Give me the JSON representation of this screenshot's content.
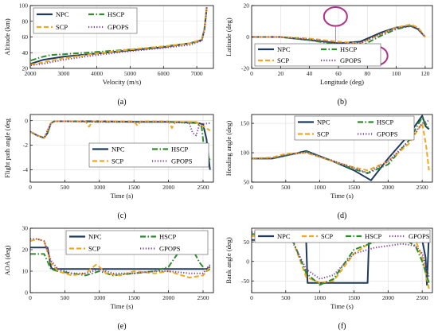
{
  "chart_data": [
    {
      "type": "line",
      "caption": "(a)",
      "xlabel": "Velocity (m/s)",
      "ylabel": "Altitude (km)",
      "xlim": [
        2000,
        7500
      ],
      "ylim": [
        20,
        100
      ],
      "xticks": [
        2000,
        3000,
        4000,
        5000,
        6000,
        7000
      ],
      "yticks": [
        20,
        40,
        60,
        80,
        100
      ],
      "legend": {
        "placement": "top-left",
        "columns": 2
      },
      "series": [
        {
          "name": "NPC",
          "color": "#1f3b5c",
          "dash": "solid",
          "x": [
            2020,
            2400,
            3000,
            4000,
            5000,
            6000,
            6800,
            7150,
            7230,
            7280,
            7300
          ],
          "y": [
            26,
            31,
            35,
            39,
            43,
            47,
            52,
            56,
            70,
            90,
            98
          ]
        },
        {
          "name": "HSCP",
          "color": "#2e8b2e",
          "dash": "dashdot",
          "x": [
            2020,
            2300,
            2600,
            3000,
            4000,
            5000,
            6000,
            6800,
            7150,
            7230,
            7280,
            7300
          ],
          "y": [
            30,
            34,
            37,
            38,
            41,
            44,
            48,
            52,
            56,
            70,
            90,
            98
          ]
        },
        {
          "name": "SCP",
          "color": "#f0a81e",
          "dash": "dashed",
          "x": [
            2020,
            2300,
            3000,
            4000,
            5000,
            6000,
            6800,
            7150,
            7230,
            7280,
            7300
          ],
          "y": [
            25,
            27,
            33,
            39,
            44,
            48,
            52,
            57,
            70,
            90,
            98
          ]
        },
        {
          "name": "GPOPS",
          "color": "#7b3fa0",
          "dash": "dotted",
          "x": [
            2020,
            2400,
            3000,
            4000,
            5000,
            6000,
            6800,
            7150,
            7230,
            7280,
            7300
          ],
          "y": [
            24,
            26,
            31,
            37,
            42,
            46,
            50,
            55,
            68,
            88,
            98
          ]
        }
      ]
    },
    {
      "type": "line",
      "caption": "(b)",
      "xlabel": "Longitude (deg)",
      "ylabel": "Latitude (deg)",
      "xlim": [
        0,
        125
      ],
      "ylim": [
        -20,
        20
      ],
      "xticks": [
        0,
        20,
        40,
        60,
        80,
        100,
        120
      ],
      "yticks": [
        -20,
        0,
        20
      ],
      "legend": {
        "placement": "bottom-left",
        "columns": 2
      },
      "series": [
        {
          "name": "NPC",
          "color": "#1f3b5c",
          "dash": "solid",
          "x": [
            0,
            20,
            40,
            60,
            75,
            90,
            100,
            110,
            115,
            120
          ],
          "y": [
            0,
            0,
            -2,
            -4,
            -3,
            3,
            6,
            7,
            5,
            0
          ]
        },
        {
          "name": "HSCP",
          "color": "#2e8b2e",
          "dash": "dashdot",
          "x": [
            0,
            20,
            40,
            60,
            75,
            90,
            100,
            110,
            115,
            120
          ],
          "y": [
            0,
            0,
            -2,
            -5,
            -6,
            1,
            5,
            7,
            6,
            0
          ]
        },
        {
          "name": "SCP",
          "color": "#f0a81e",
          "dash": "dashed",
          "x": [
            0,
            20,
            40,
            60,
            75,
            90,
            100,
            110,
            115,
            120
          ],
          "y": [
            0,
            0,
            -1,
            -3,
            -4,
            2,
            6,
            8,
            6,
            0
          ]
        },
        {
          "name": "GPOPS",
          "color": "#7b3fa0",
          "dash": "dotted",
          "x": [
            0,
            20,
            40,
            60,
            75,
            90,
            100,
            110,
            115,
            120
          ],
          "y": [
            0,
            0,
            -1.5,
            -4,
            -4,
            2,
            5.5,
            7,
            5,
            0
          ]
        }
      ],
      "annotations": [
        {
          "kind": "ellipse",
          "cx": 58,
          "cy": 13,
          "rx": 8,
          "ry": 6,
          "color": "#b0308a"
        },
        {
          "kind": "ellipse",
          "cx": 86,
          "cy": -12,
          "rx": 8,
          "ry": 6,
          "color": "#b0308a"
        }
      ]
    },
    {
      "type": "line",
      "caption": "(c)",
      "xlabel": "Time (s)",
      "ylabel": "Flight path angle (deg",
      "xlim": [
        0,
        2650
      ],
      "ylim": [
        -5,
        0.5
      ],
      "xticks": [
        0,
        500,
        1000,
        1500,
        2000,
        2500
      ],
      "yticks": [
        -4,
        -2,
        0
      ],
      "legend": {
        "placement": "bottom-center",
        "columns": 2
      },
      "series": [
        {
          "name": "NPC",
          "color": "#1f3b5c",
          "dash": "solid",
          "x": [
            0,
            100,
            200,
            250,
            300,
            350,
            500,
            1000,
            1500,
            2000,
            2400,
            2500,
            2550,
            2600
          ],
          "y": [
            -0.9,
            -1.2,
            -1.4,
            -1.0,
            -0.2,
            -0.05,
            -0.05,
            -0.05,
            -0.1,
            -0.1,
            -0.15,
            -0.3,
            -1.5,
            -4.0
          ]
        },
        {
          "name": "HSCP",
          "color": "#2e8b2e",
          "dash": "dashdot",
          "x": [
            0,
            100,
            200,
            250,
            300,
            350,
            500,
            1000,
            1500,
            2000,
            2400,
            2480,
            2520,
            2600
          ],
          "y": [
            -0.9,
            -1.2,
            -1.4,
            -1.0,
            -0.2,
            -0.05,
            -0.05,
            -0.1,
            -0.1,
            -0.1,
            -0.2,
            -0.5,
            -2.5,
            -3.2
          ]
        },
        {
          "name": "SCP",
          "color": "#f0a81e",
          "dash": "dashed",
          "x": [
            0,
            100,
            200,
            300,
            350,
            800,
            850,
            900,
            1000,
            1500,
            1550,
            1600,
            2000,
            2050,
            2100,
            2400,
            2600
          ],
          "y": [
            -0.9,
            -1.2,
            -1.4,
            -0.2,
            -0.05,
            -0.05,
            -0.5,
            -0.05,
            -0.05,
            -0.05,
            -0.4,
            -0.05,
            -0.05,
            -0.6,
            -0.1,
            -0.1,
            -0.8
          ]
        },
        {
          "name": "GPOPS",
          "color": "#7b3fa0",
          "dash": "dotted",
          "x": [
            0,
            100,
            200,
            300,
            350,
            500,
            1000,
            1500,
            2000,
            2300,
            2350,
            2400,
            2450,
            2600
          ],
          "y": [
            -0.9,
            -1.2,
            -1.4,
            -0.2,
            -0.05,
            -0.05,
            -0.1,
            -0.1,
            -0.1,
            -0.2,
            -1.0,
            -1.2,
            -0.3,
            -0.2
          ]
        }
      ]
    },
    {
      "type": "line",
      "caption": "(d)",
      "xlabel": "Time (s)",
      "ylabel": "Heading angle (deg)",
      "xlim": [
        0,
        2650
      ],
      "ylim": [
        50,
        165
      ],
      "xticks": [
        0,
        500,
        1000,
        1500,
        2000,
        2500
      ],
      "yticks": [
        50,
        100,
        150
      ],
      "legend": {
        "placement": "top-right",
        "columns": 2
      },
      "series": [
        {
          "name": "NPC",
          "color": "#1f3b5c",
          "dash": "solid",
          "x": [
            0,
            300,
            500,
            800,
            1200,
            1500,
            1750,
            2000,
            2300,
            2500,
            2550,
            2600
          ],
          "y": [
            90,
            90,
            95,
            103,
            85,
            70,
            53,
            90,
            130,
            163,
            145,
            140
          ]
        },
        {
          "name": "HSCP",
          "color": "#2e8b2e",
          "dash": "dashdot",
          "x": [
            0,
            300,
            500,
            800,
            1200,
            1500,
            1700,
            2000,
            2300,
            2500,
            2550,
            2600
          ],
          "y": [
            90,
            90,
            95,
            102,
            85,
            72,
            65,
            80,
            120,
            160,
            150,
            140
          ]
        },
        {
          "name": "SCP",
          "color": "#f0a81e",
          "dash": "dashed",
          "x": [
            0,
            300,
            500,
            800,
            1200,
            1500,
            1700,
            2000,
            2300,
            2500,
            2560,
            2600
          ],
          "y": [
            90,
            92,
            98,
            100,
            85,
            75,
            70,
            85,
            115,
            150,
            110,
            70
          ]
        },
        {
          "name": "GPOPS",
          "color": "#7b3fa0",
          "dash": "dotted",
          "x": [
            0,
            300,
            500,
            800,
            1200,
            1500,
            1700,
            2000,
            2300,
            2500,
            2600
          ],
          "y": [
            90,
            90,
            96,
            101,
            86,
            74,
            66,
            85,
            120,
            150,
            155
          ]
        }
      ]
    },
    {
      "type": "line",
      "caption": "(e)",
      "xlabel": "Time (s)",
      "ylabel": "AOA (deg)",
      "xlim": [
        0,
        2650
      ],
      "ylim": [
        0,
        30
      ],
      "xticks": [
        0,
        500,
        1000,
        1500,
        2000,
        2500
      ],
      "yticks": [
        0,
        10,
        20,
        30
      ],
      "legend": {
        "placement": "top-right",
        "columns": 2
      },
      "series": [
        {
          "name": "NPC",
          "color": "#1f3b5c",
          "dash": "solid",
          "x": [
            0,
            250,
            300,
            320,
            500,
            1000,
            1500,
            2000,
            2400,
            2550,
            2600
          ],
          "y": [
            21,
            21,
            12,
            11,
            11,
            11,
            11,
            11,
            11,
            11,
            12
          ]
        },
        {
          "name": "HSCP",
          "color": "#2e8b2e",
          "dash": "dashdot",
          "x": [
            0,
            200,
            300,
            400,
            600,
            800,
            1000,
            1200,
            1500,
            1800,
            2000,
            2150,
            2250,
            2350,
            2450,
            2550,
            2600
          ],
          "y": [
            18,
            18,
            11,
            10,
            9,
            8,
            10,
            8,
            9,
            10,
            12,
            19,
            23,
            20,
            14,
            10,
            11
          ]
        },
        {
          "name": "SCP",
          "color": "#f0a81e",
          "dash": "dashed",
          "x": [
            0,
            100,
            200,
            300,
            400,
            600,
            800,
            950,
            1000,
            1100,
            1300,
            1500,
            1800,
            2000,
            2300,
            2500,
            2600
          ],
          "y": [
            24,
            25,
            24,
            14,
            10,
            8,
            9,
            13,
            12,
            9,
            8,
            10,
            9,
            10,
            7,
            8,
            12
          ]
        },
        {
          "name": "GPOPS",
          "color": "#7b3fa0",
          "dash": "dotted",
          "x": [
            0,
            100,
            200,
            300,
            400,
            600,
            800,
            1000,
            1200,
            1500,
            1800,
            2000,
            2300,
            2500,
            2600
          ],
          "y": [
            25,
            25,
            24,
            15,
            11,
            9,
            9,
            11,
            9,
            9,
            10,
            10,
            9,
            9,
            13
          ]
        }
      ]
    },
    {
      "type": "line",
      "caption": "(f)",
      "xlabel": "Time (s)",
      "ylabel": "Bank angle (deg)",
      "xlim": [
        0,
        2650
      ],
      "ylim": [
        -80,
        85
      ],
      "xticks": [
        0,
        500,
        1000,
        1500,
        2000,
        2500
      ],
      "yticks": [
        -50,
        0,
        50
      ],
      "legend": {
        "placement": "top",
        "columns": 4
      },
      "series": [
        {
          "name": "NPC",
          "color": "#1f3b5c",
          "dash": "solid",
          "x": [
            0,
            300,
            350,
            800,
            820,
            1500,
            1700,
            1720,
            2500,
            2550,
            2570,
            2600
          ],
          "y": [
            55,
            55,
            75,
            50,
            -55,
            -55,
            -55,
            55,
            55,
            10,
            -60,
            75
          ]
        },
        {
          "name": "SCP",
          "color": "#f0a81e",
          "dash": "dashed",
          "x": [
            0,
            200,
            350,
            600,
            800,
            1000,
            1200,
            1500,
            1800,
            2000,
            2200,
            2400,
            2500,
            2600
          ],
          "y": [
            65,
            65,
            75,
            55,
            -40,
            -55,
            -50,
            20,
            55,
            60,
            62,
            55,
            10,
            -70
          ]
        },
        {
          "name": "HSCP",
          "color": "#2e8b2e",
          "dash": "dashdot",
          "x": [
            0,
            200,
            350,
            600,
            800,
            1000,
            1200,
            1500,
            1800,
            2000,
            2200,
            2400,
            2500,
            2600
          ],
          "y": [
            70,
            70,
            78,
            55,
            -30,
            -60,
            -45,
            30,
            50,
            55,
            60,
            40,
            0,
            -55
          ]
        },
        {
          "name": "GPOPS",
          "color": "#7b3fa0",
          "dash": "dotted",
          "x": [
            0,
            200,
            350,
            600,
            800,
            1000,
            1200,
            1500,
            1800,
            2000,
            2200,
            2400,
            2500,
            2600
          ],
          "y": [
            75,
            75,
            72,
            50,
            -20,
            -45,
            -35,
            20,
            35,
            40,
            45,
            40,
            20,
            -40
          ]
        }
      ]
    }
  ]
}
